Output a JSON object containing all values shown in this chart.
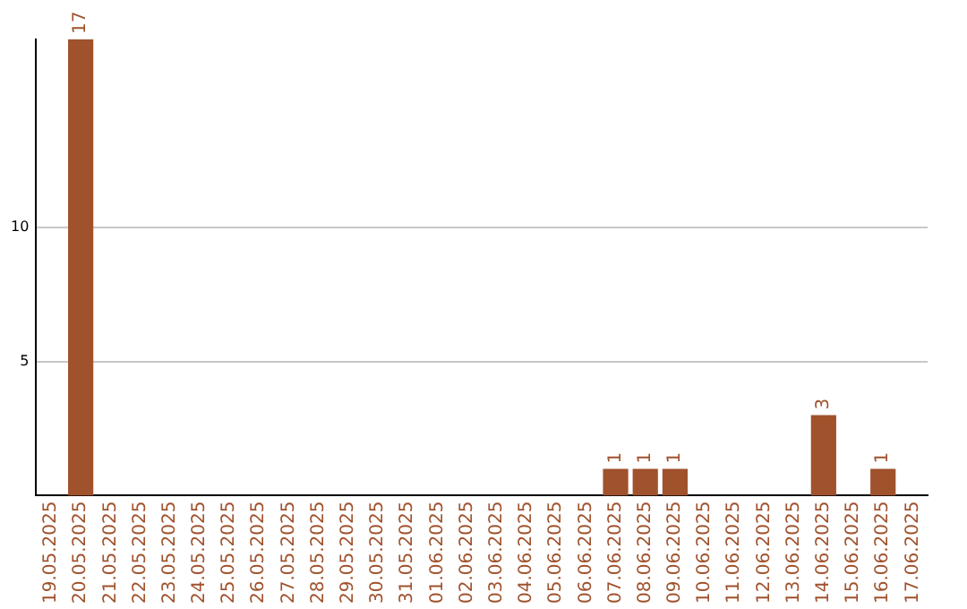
{
  "chart_data": {
    "type": "bar",
    "categories": [
      "19.05.2025",
      "20.05.2025",
      "21.05.2025",
      "22.05.2025",
      "23.05.2025",
      "24.05.2025",
      "25.05.2025",
      "26.05.2025",
      "27.05.2025",
      "28.05.2025",
      "29.05.2025",
      "30.05.2025",
      "31.05.2025",
      "01.06.2025",
      "02.06.2025",
      "03.06.2025",
      "04.06.2025",
      "05.06.2025",
      "06.06.2025",
      "07.06.2025",
      "08.06.2025",
      "09.06.2025",
      "10.06.2025",
      "11.06.2025",
      "12.06.2025",
      "13.06.2025",
      "14.06.2025",
      "15.06.2025",
      "16.06.2025",
      "17.06.2025"
    ],
    "values": [
      0,
      17,
      0,
      0,
      0,
      0,
      0,
      0,
      0,
      0,
      0,
      0,
      0,
      0,
      0,
      0,
      0,
      0,
      0,
      1,
      1,
      1,
      0,
      0,
      0,
      0,
      3,
      0,
      1,
      0
    ],
    "value_labels": [
      null,
      "17",
      null,
      null,
      null,
      null,
      null,
      null,
      null,
      null,
      null,
      null,
      null,
      null,
      null,
      null,
      null,
      null,
      null,
      "1",
      "1",
      "1",
      null,
      null,
      null,
      null,
      "3",
      null,
      "1",
      null
    ],
    "color": "#a0522d",
    "ylim": [
      0,
      17
    ],
    "yticks": [
      5,
      10
    ],
    "grid": "y",
    "legend": false
  }
}
